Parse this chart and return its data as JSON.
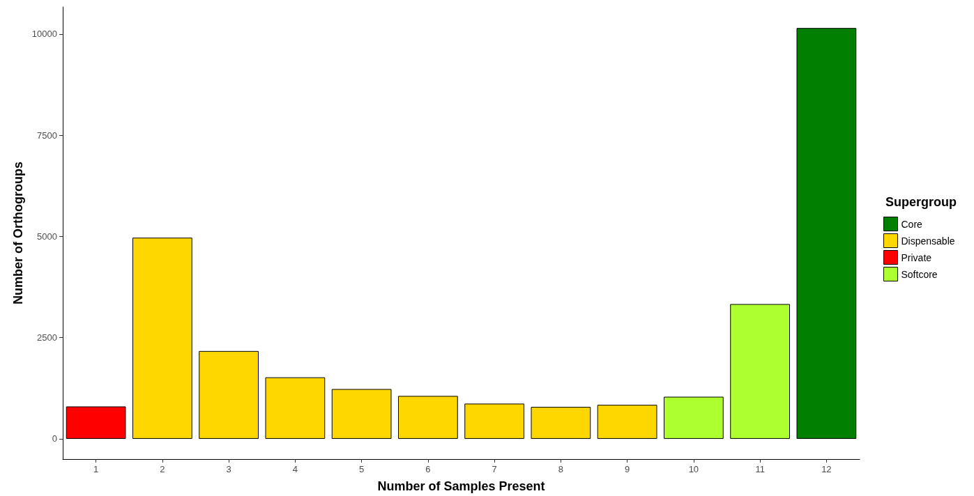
{
  "chart_data": {
    "type": "bar",
    "xlabel": "Number of Samples Present",
    "ylabel": "Number of Orthogroups",
    "legend_title": "Supergroup",
    "categories": [
      "1",
      "2",
      "3",
      "4",
      "5",
      "6",
      "7",
      "8",
      "9",
      "10",
      "11",
      "12"
    ],
    "stacked": true,
    "series": [
      {
        "name": "Core",
        "color": "#007f00",
        "values": [
          null,
          null,
          null,
          null,
          null,
          null,
          null,
          null,
          null,
          null,
          null,
          10150
        ]
      },
      {
        "name": "Dispensable",
        "color": "#ffd700",
        "values": [
          null,
          4970,
          2170,
          1520,
          1230,
          1060,
          870,
          790,
          840,
          null,
          null,
          null
        ]
      },
      {
        "name": "Private",
        "color": "#ff0000",
        "values": [
          800,
          null,
          null,
          null,
          null,
          null,
          null,
          null,
          null,
          null,
          null,
          null
        ]
      },
      {
        "name": "Softcore",
        "color": "#adff2f",
        "values": [
          null,
          null,
          null,
          null,
          null,
          null,
          null,
          null,
          null,
          1040,
          3330,
          null
        ]
      }
    ],
    "ylim": [
      -500,
      10670
    ],
    "yticks": [
      0,
      2500,
      5000,
      7500,
      10000
    ],
    "grid": false,
    "legend": "right"
  }
}
